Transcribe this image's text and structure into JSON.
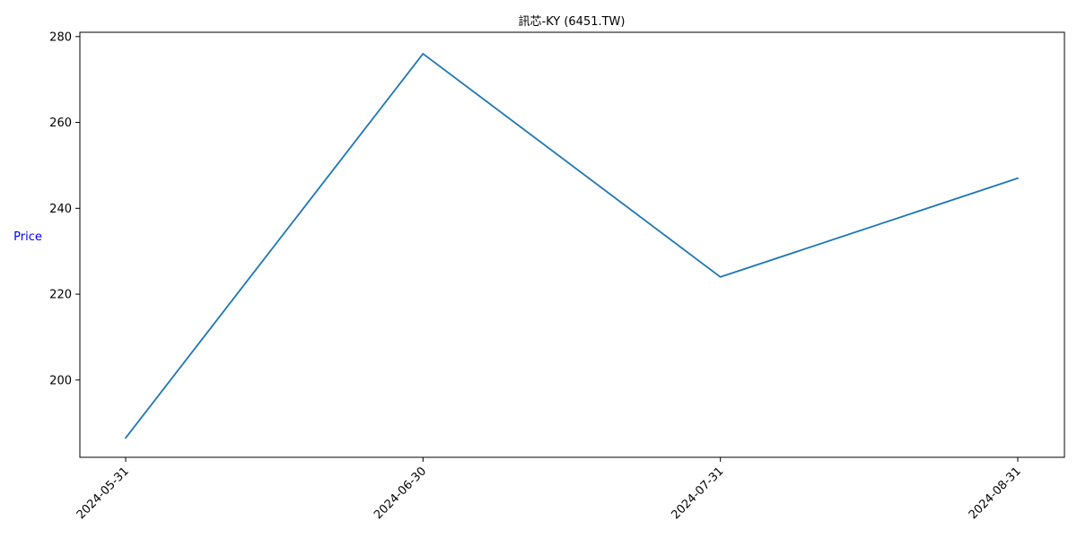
{
  "chart_data": {
    "type": "line",
    "title": "訊芯-KY (6451.TW)",
    "xlabel": "",
    "ylabel": "Price",
    "ylabel_color": "#0000ff",
    "x": [
      "2024-05-31",
      "2024-06-30",
      "2024-07-31",
      "2024-08-31"
    ],
    "series": [
      {
        "color": "#1f77b4",
        "values": [
          186.5,
          276.0,
          224.0,
          247.0
        ]
      }
    ],
    "ylim": [
      182,
      281
    ],
    "yticks": [
      200,
      220,
      240,
      260,
      280
    ],
    "x_tick_rotation": 45,
    "grid": false,
    "legend": false
  }
}
